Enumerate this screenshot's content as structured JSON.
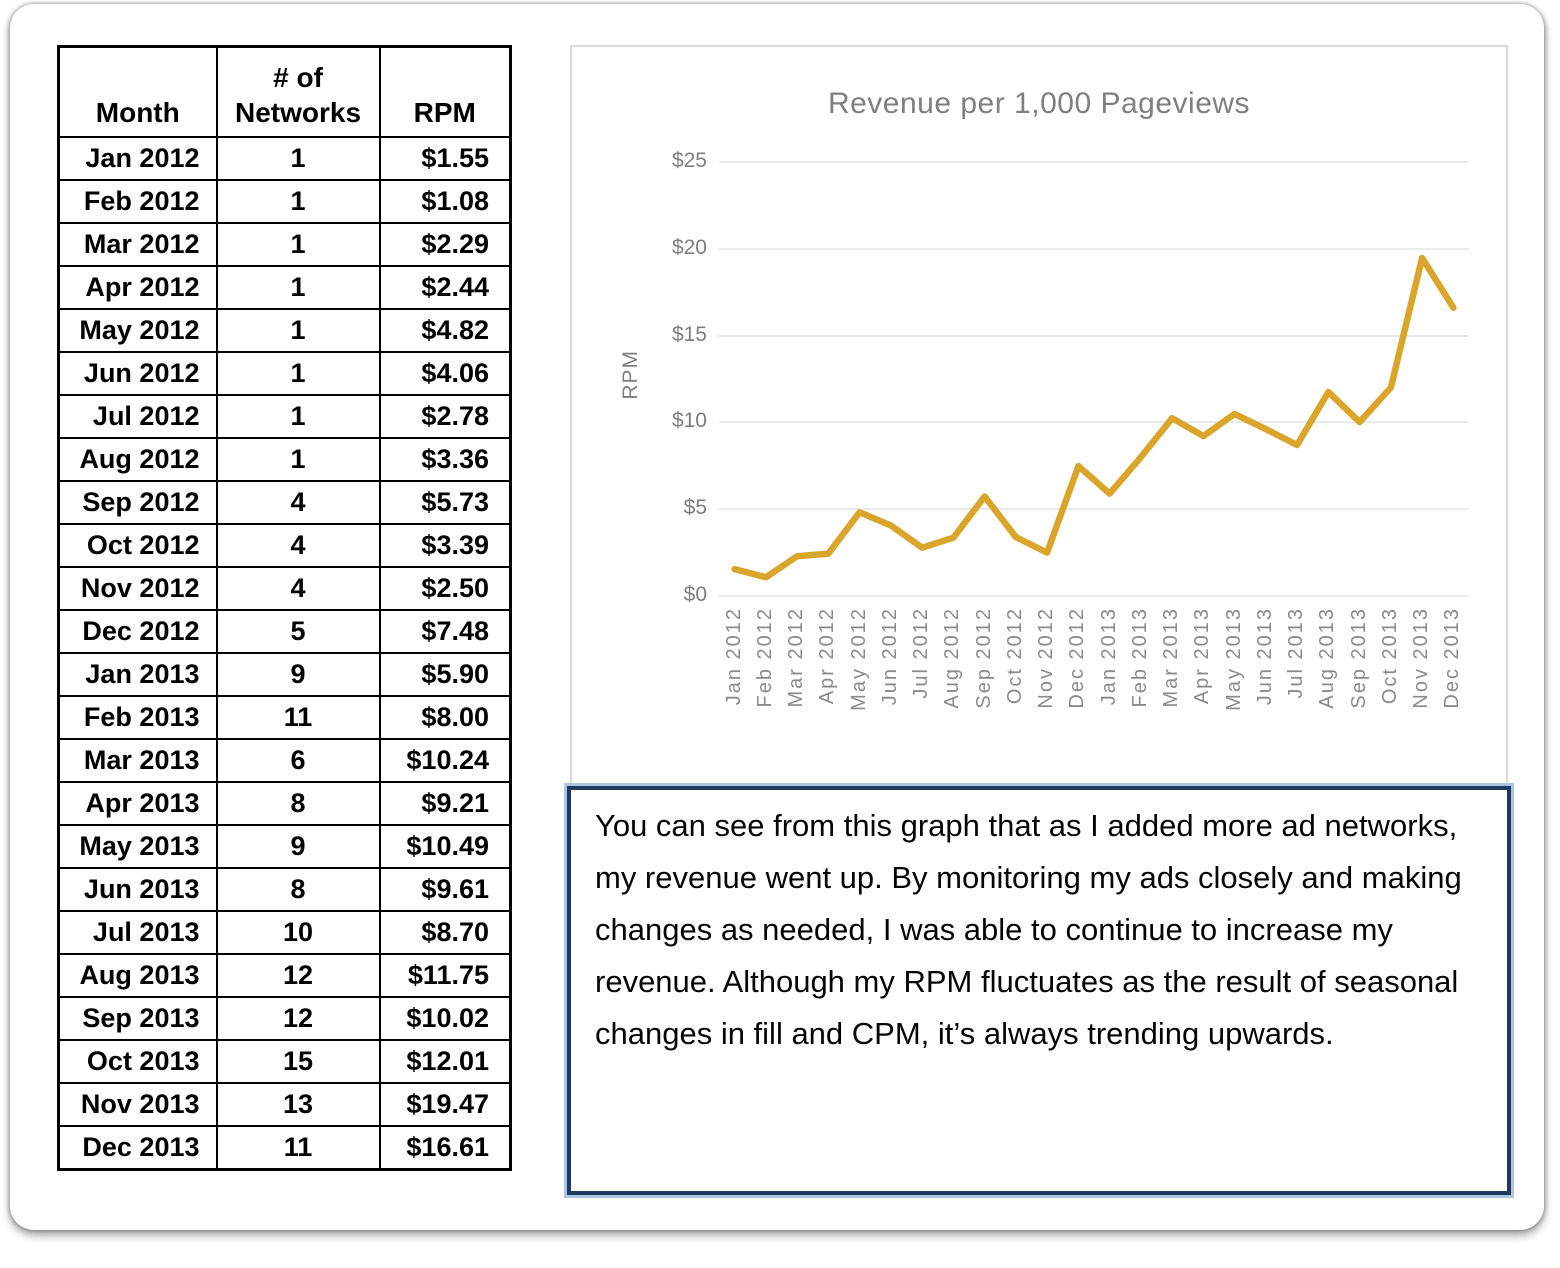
{
  "table": {
    "headers": {
      "month": "Month",
      "networks": "# of Networks",
      "rpm": "RPM"
    },
    "rows": [
      [
        "Jan 2012",
        "1",
        "$1.55"
      ],
      [
        "Feb 2012",
        "1",
        "$1.08"
      ],
      [
        "Mar 2012",
        "1",
        "$2.29"
      ],
      [
        "Apr 2012",
        "1",
        "$2.44"
      ],
      [
        "May 2012",
        "1",
        "$4.82"
      ],
      [
        "Jun 2012",
        "1",
        "$4.06"
      ],
      [
        "Jul 2012",
        "1",
        "$2.78"
      ],
      [
        "Aug 2012",
        "1",
        "$3.36"
      ],
      [
        "Sep 2012",
        "4",
        "$5.73"
      ],
      [
        "Oct 2012",
        "4",
        "$3.39"
      ],
      [
        "Nov 2012",
        "4",
        "$2.50"
      ],
      [
        "Dec 2012",
        "5",
        "$7.48"
      ],
      [
        "Jan 2013",
        "9",
        "$5.90"
      ],
      [
        "Feb 2013",
        "11",
        "$8.00"
      ],
      [
        "Mar 2013",
        "6",
        "$10.24"
      ],
      [
        "Apr 2013",
        "8",
        "$9.21"
      ],
      [
        "May 2013",
        "9",
        "$10.49"
      ],
      [
        "Jun 2013",
        "8",
        "$9.61"
      ],
      [
        "Jul 2013",
        "10",
        "$8.70"
      ],
      [
        "Aug 2013",
        "12",
        "$11.75"
      ],
      [
        "Sep 2013",
        "12",
        "$10.02"
      ],
      [
        "Oct 2013",
        "15",
        "$12.01"
      ],
      [
        "Nov 2013",
        "13",
        "$19.47"
      ],
      [
        "Dec 2013",
        "11",
        "$16.61"
      ]
    ]
  },
  "chart_data": {
    "type": "line",
    "title": "Revenue per 1,000 Pageviews",
    "xlabel": "",
    "ylabel": "RPM",
    "categories": [
      "Jan 2012",
      "Feb 2012",
      "Mar 2012",
      "Apr 2012",
      "May 2012",
      "Jun 2012",
      "Jul 2012",
      "Aug 2012",
      "Sep 2012",
      "Oct 2012",
      "Nov 2012",
      "Dec 2012",
      "Jan 2013",
      "Feb 2013",
      "Mar 2013",
      "Apr 2013",
      "May 2013",
      "Jun 2013",
      "Jul 2013",
      "Aug 2013",
      "Sep 2013",
      "Oct 2013",
      "Nov 2013",
      "Dec 2013"
    ],
    "values": [
      1.55,
      1.08,
      2.29,
      2.44,
      4.82,
      4.06,
      2.78,
      3.36,
      5.73,
      3.39,
      2.5,
      7.48,
      5.9,
      8.0,
      10.24,
      9.21,
      10.49,
      9.61,
      8.7,
      11.75,
      10.02,
      12.01,
      19.47,
      16.61
    ],
    "ylim": [
      0,
      25
    ],
    "ytick_values": [
      0,
      5,
      10,
      15,
      20,
      25
    ],
    "ytick_labels": [
      "$0",
      "$5",
      "$10",
      "$15",
      "$20",
      "$25"
    ],
    "grid": true,
    "legend": false,
    "line_color": "#D9A62B",
    "grid_color": "#EAEAEA",
    "text_color": "#7F7F7F"
  },
  "note": {
    "text": "You can see from this graph that as I added more ad networks, my revenue went up. By monitoring my ads closely and making changes as needed, I was able to continue to increase my revenue. Although my RPM fluctuates as the result of seasonal changes in fill and CPM, it’s always trending upwards."
  }
}
